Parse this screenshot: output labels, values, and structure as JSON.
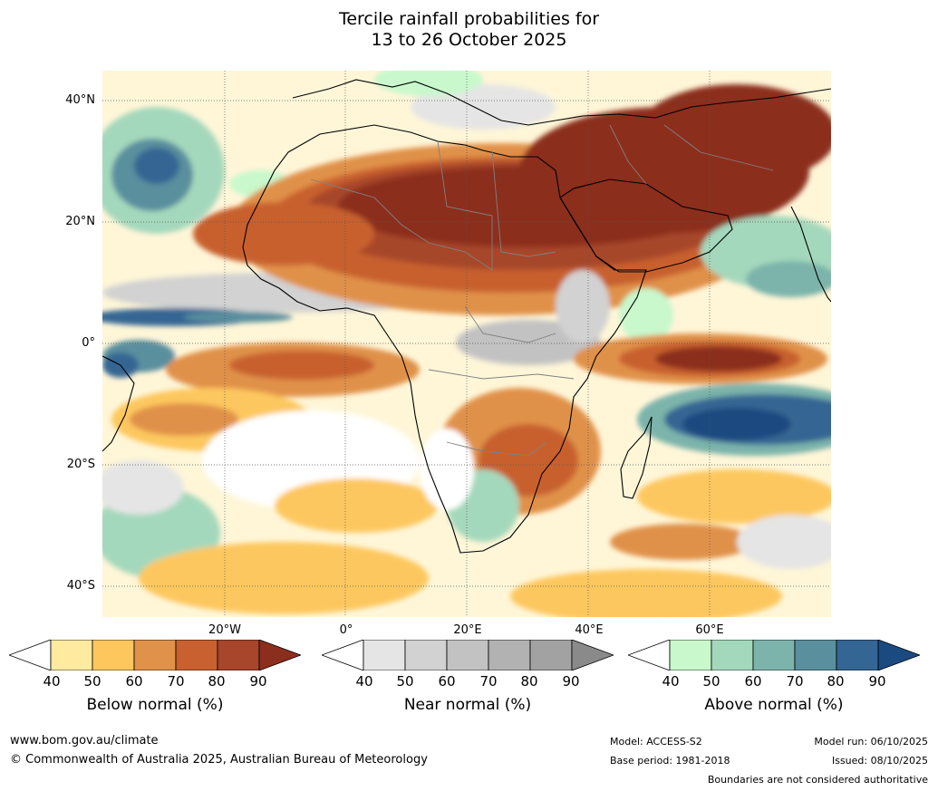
{
  "title": {
    "line1": "Tercile rainfall probabilities for",
    "line2": "13 to 26 October 2025"
  },
  "map": {
    "lat_labels": [
      "40°N",
      "20°N",
      "0°",
      "20°S",
      "40°S"
    ],
    "lon_labels": [
      "20°W",
      "0°",
      "20°E",
      "40°E",
      "60°E"
    ],
    "colors": {
      "ocean_neutral": "#ffffff",
      "land_outline": "#000000",
      "border": "#808080",
      "grid": "#555555"
    }
  },
  "colorbars": [
    {
      "title": "Below normal (%)",
      "ticks": [
        "40",
        "50",
        "60",
        "70",
        "80",
        "90"
      ],
      "colors": [
        "#ffffff",
        "#ffeaa0",
        "#fdc75e",
        "#e0914a",
        "#c8602f",
        "#a7462a",
        "#8c2e1e"
      ]
    },
    {
      "title": "Near normal (%)",
      "ticks": [
        "40",
        "50",
        "60",
        "70",
        "80",
        "90"
      ],
      "colors": [
        "#ffffff",
        "#e5e5e5",
        "#d2d2d2",
        "#c2c2c2",
        "#b2b2b2",
        "#a2a2a2",
        "#8a8a8a"
      ]
    },
    {
      "title": "Above normal (%)",
      "ticks": [
        "40",
        "50",
        "60",
        "70",
        "80",
        "90"
      ],
      "colors": [
        "#ffffff",
        "#c8f8cc",
        "#a4d8bc",
        "#7cb4ab",
        "#5a8f9e",
        "#346693",
        "#1b4a80"
      ]
    }
  ],
  "footer": {
    "website": "www.bom.gov.au/climate",
    "copyright": "© Commonwealth of Australia 2025, Australian Bureau of Meteorology",
    "model": "Model: ACCESS-S2",
    "base_period": "Base period: 1981-2018",
    "model_run": "Model run: 06/10/2025",
    "issued": "Issued: 08/10/2025",
    "disclaimer": "Boundaries are not considered authoritative"
  }
}
